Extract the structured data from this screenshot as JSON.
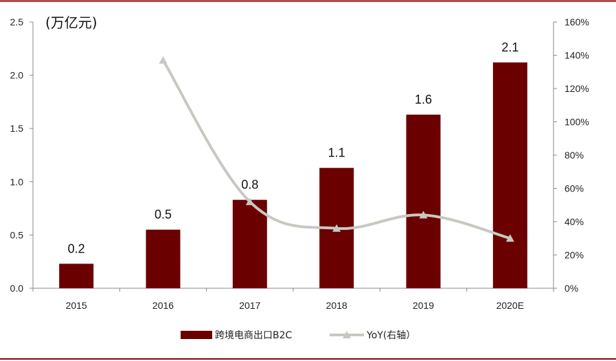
{
  "chart_data": {
    "type": "bar",
    "unit_label": "(万亿元)",
    "categories": [
      "2015",
      "2016",
      "2017",
      "2018",
      "2019",
      "2020E"
    ],
    "series": [
      {
        "name": "跨境电商出口B2C",
        "type": "bar",
        "axis": "left",
        "values": [
          0.23,
          0.55,
          0.83,
          1.13,
          1.63,
          2.12
        ],
        "labels": [
          "0.2",
          "0.5",
          "0.8",
          "1.1",
          "1.6",
          "2.1"
        ],
        "color": "#6b0000"
      },
      {
        "name": "YoY(右轴）",
        "type": "line",
        "axis": "right",
        "values": [
          null,
          1.37,
          0.52,
          0.36,
          0.44,
          0.3
        ],
        "color": "#c8c8c2"
      }
    ],
    "y_left": {
      "ylim": [
        0,
        2.5
      ],
      "ticks": [
        "0.0",
        "0.5",
        "1.0",
        "1.5",
        "2.0",
        "2.5"
      ]
    },
    "y_right": {
      "ylim": [
        0,
        1.6
      ],
      "ticks": [
        "0%",
        "20%",
        "40%",
        "60%",
        "80%",
        "100%",
        "120%",
        "140%",
        "160%"
      ]
    },
    "grid": false,
    "legend_position": "bottom",
    "frame_color": "#8b0000"
  }
}
